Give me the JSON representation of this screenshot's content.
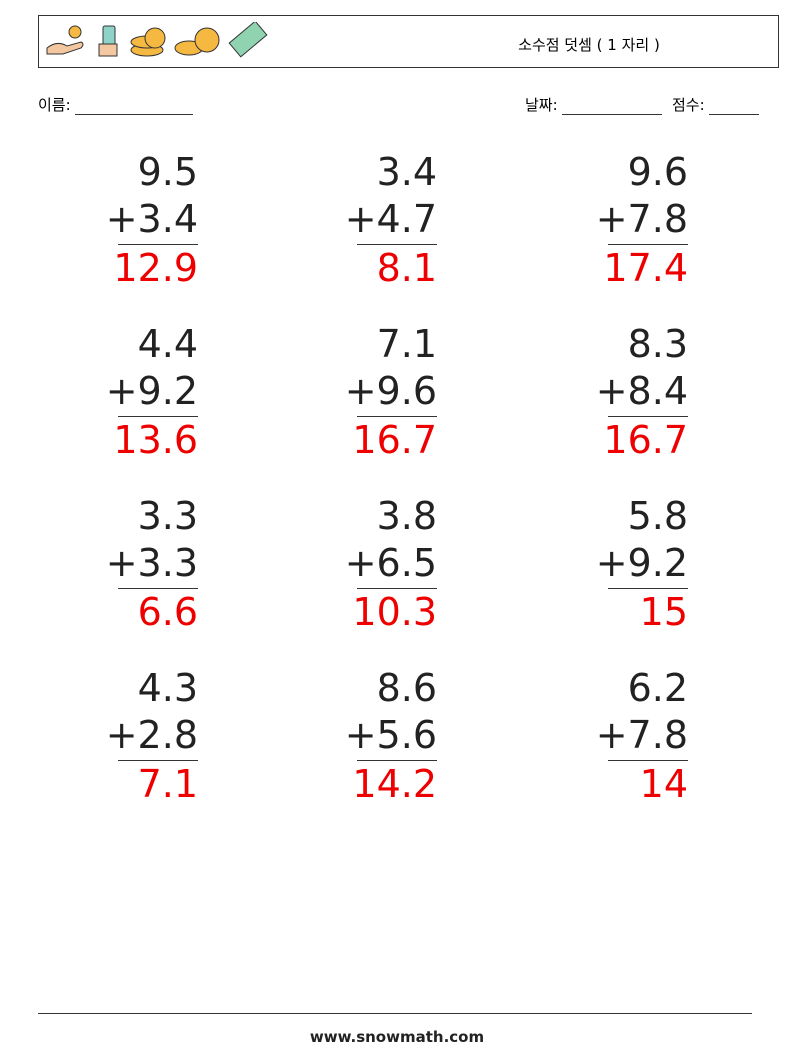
{
  "header": {
    "title": "소수점 덧셈 ( 1 자리 )"
  },
  "fields": {
    "name": "이름:",
    "date": "날짜:",
    "score": "점수:"
  },
  "problems": [
    [
      {
        "top": "9.5",
        "bottom": "+3.4",
        "answer": "12.9"
      },
      {
        "top": "3.4",
        "bottom": "+4.7",
        "answer": "8.1"
      },
      {
        "top": "9.6",
        "bottom": "+7.8",
        "answer": "17.4"
      }
    ],
    [
      {
        "top": "4.4",
        "bottom": "+9.2",
        "answer": "13.6"
      },
      {
        "top": "7.1",
        "bottom": "+9.6",
        "answer": "16.7"
      },
      {
        "top": "8.3",
        "bottom": "+8.4",
        "answer": "16.7"
      }
    ],
    [
      {
        "top": "3.3",
        "bottom": "+3.3",
        "answer": "6.6"
      },
      {
        "top": "3.8",
        "bottom": "+6.5",
        "answer": "10.3"
      },
      {
        "top": "5.8",
        "bottom": "+9.2",
        "answer": "15"
      }
    ],
    [
      {
        "top": "4.3",
        "bottom": "+2.8",
        "answer": "7.1"
      },
      {
        "top": "8.6",
        "bottom": "+5.6",
        "answer": "14.2"
      },
      {
        "top": "6.2",
        "bottom": "+7.8",
        "answer": "14"
      }
    ]
  ],
  "footer": {
    "site": "www.snowmath.com"
  }
}
